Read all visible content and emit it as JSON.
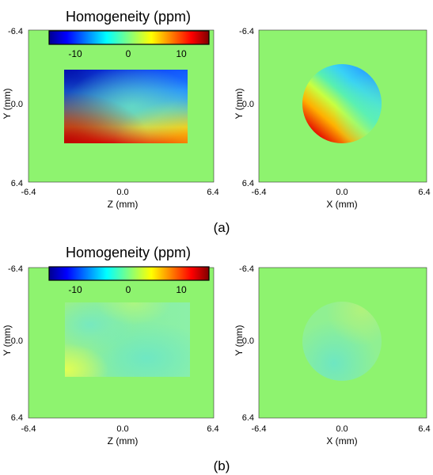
{
  "chart_data": {
    "type": "heatmap",
    "colormap": "jet",
    "background_color": "#8ef36f",
    "colorbar": {
      "title": "Homogeneity (ppm)",
      "range": [
        -15,
        15
      ],
      "ticks": [
        "-10",
        "0",
        "10"
      ]
    },
    "panels": [
      {
        "label": "(a)",
        "plots": [
          {
            "view": "Y-Z",
            "xlabel": "Z (mm)",
            "ylabel": "Y (mm)",
            "xticks": [
              "-6.4",
              "0.0",
              "6.4"
            ],
            "yticks": [
              "-6.4",
              "0.0",
              "6.4"
            ],
            "region": "rectangle",
            "region_extent": {
              "z": [
                -4.6,
                4.3
              ],
              "y": [
                -2.4,
                2.6
              ]
            },
            "field_ppm": {
              "top_left": -15,
              "top_right": -6,
              "bottom_left": 15,
              "bottom_right": 3,
              "center": 0
            }
          },
          {
            "view": "Y-X",
            "xlabel": "X (mm)",
            "ylabel": "Y (mm)",
            "xticks": [
              "-6.4",
              "0.0",
              "6.4"
            ],
            "yticks": [
              "-6.4",
              "0.0",
              "6.4"
            ],
            "region": "circle",
            "region_extent": {
              "x_center": 0.5,
              "y_center": 0.0,
              "radius": 2.7
            },
            "field_ppm": {
              "top": -4,
              "bottom_left": 12,
              "right": 0
            }
          }
        ]
      },
      {
        "label": "(b)",
        "plots": [
          {
            "view": "Y-Z",
            "xlabel": "Z (mm)",
            "ylabel": "Y (mm)",
            "xticks": [
              "-6.4",
              "0.0",
              "6.4"
            ],
            "yticks": [
              "-6.4",
              "0.0",
              "6.4"
            ],
            "region": "rectangle",
            "region_extent": {
              "z": [
                -4.6,
                4.3
              ],
              "y": [
                -2.4,
                2.6
              ]
            },
            "field_ppm": {
              "min": -3,
              "max": 3
            }
          },
          {
            "view": "Y-X",
            "xlabel": "X (mm)",
            "ylabel": "Y (mm)",
            "xticks": [
              "-6.4",
              "0.0",
              "6.4"
            ],
            "yticks": [
              "-6.4",
              "0.0",
              "6.4"
            ],
            "region": "circle",
            "region_extent": {
              "x_center": 0.5,
              "y_center": 0.0,
              "radius": 2.7
            },
            "field_ppm": {
              "min": -2,
              "max": 1
            }
          }
        ]
      }
    ]
  }
}
